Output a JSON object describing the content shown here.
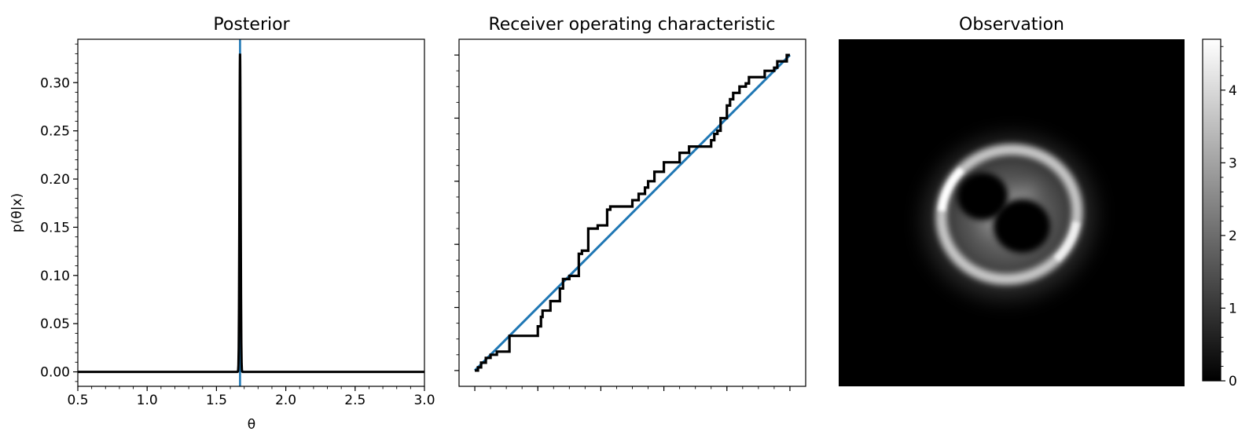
{
  "chart_data": [
    {
      "type": "line",
      "title": "Posterior",
      "xlabel": "θ",
      "ylabel": "p(θ|x)",
      "xlim": [
        0.5,
        3.0
      ],
      "ylim": [
        -0.015,
        0.345
      ],
      "x_ticks": [
        "0.5",
        "1.0",
        "1.5",
        "2.0",
        "2.5",
        "3.0"
      ],
      "y_ticks": [
        "0.00",
        "0.05",
        "0.10",
        "0.15",
        "0.20",
        "0.25",
        "0.30"
      ],
      "peak": {
        "x": 1.67,
        "y": 0.33
      },
      "reference_line": {
        "x": 1.67,
        "color": "#1f77b4"
      },
      "curve_color": "#000000",
      "grid": false
    },
    {
      "type": "line",
      "title": "Receiver operating characteristic",
      "xlim": [
        -0.05,
        1.05
      ],
      "ylim": [
        -0.05,
        1.05
      ],
      "tick_labels_shown": false,
      "diagonal": {
        "from": [
          0,
          0
        ],
        "to": [
          1,
          1
        ],
        "color": "#1f77b4"
      },
      "curve_color": "#000000",
      "roc_points": [
        [
          0.0,
          0.0
        ],
        [
          0.01,
          0.01
        ],
        [
          0.02,
          0.025
        ],
        [
          0.035,
          0.04
        ],
        [
          0.05,
          0.05
        ],
        [
          0.07,
          0.06
        ],
        [
          0.11,
          0.06
        ],
        [
          0.11,
          0.11
        ],
        [
          0.2,
          0.11
        ],
        [
          0.2,
          0.14
        ],
        [
          0.21,
          0.17
        ],
        [
          0.215,
          0.19
        ],
        [
          0.24,
          0.19
        ],
        [
          0.24,
          0.22
        ],
        [
          0.27,
          0.26
        ],
        [
          0.28,
          0.29
        ],
        [
          0.3,
          0.3
        ],
        [
          0.33,
          0.37
        ],
        [
          0.34,
          0.38
        ],
        [
          0.36,
          0.4
        ],
        [
          0.36,
          0.45
        ],
        [
          0.39,
          0.46
        ],
        [
          0.42,
          0.51
        ],
        [
          0.43,
          0.52
        ],
        [
          0.5,
          0.52
        ],
        [
          0.5,
          0.54
        ],
        [
          0.52,
          0.56
        ],
        [
          0.54,
          0.58
        ],
        [
          0.55,
          0.6
        ],
        [
          0.57,
          0.63
        ],
        [
          0.6,
          0.63
        ],
        [
          0.6,
          0.66
        ],
        [
          0.63,
          0.66
        ],
        [
          0.65,
          0.69
        ],
        [
          0.67,
          0.69
        ],
        [
          0.68,
          0.71
        ],
        [
          0.73,
          0.71
        ],
        [
          0.75,
          0.73
        ],
        [
          0.76,
          0.75
        ],
        [
          0.77,
          0.76
        ],
        [
          0.78,
          0.8
        ],
        [
          0.8,
          0.8
        ],
        [
          0.8,
          0.84
        ],
        [
          0.81,
          0.86
        ],
        [
          0.82,
          0.88
        ],
        [
          0.84,
          0.9
        ],
        [
          0.86,
          0.91
        ],
        [
          0.87,
          0.93
        ],
        [
          0.9,
          0.93
        ],
        [
          0.92,
          0.95
        ],
        [
          0.95,
          0.96
        ],
        [
          0.96,
          0.98
        ],
        [
          0.99,
          1.0
        ],
        [
          1.0,
          1.0
        ]
      ],
      "grid": false
    },
    {
      "type": "heatmap",
      "title": "Observation",
      "colormap": "gray",
      "color_range": [
        0,
        4.7
      ],
      "colorbar_ticks": [
        "0",
        "1",
        "2",
        "3",
        "4"
      ],
      "description_values": {
        "background": 0.0,
        "ring_max": 4.7
      }
    }
  ]
}
